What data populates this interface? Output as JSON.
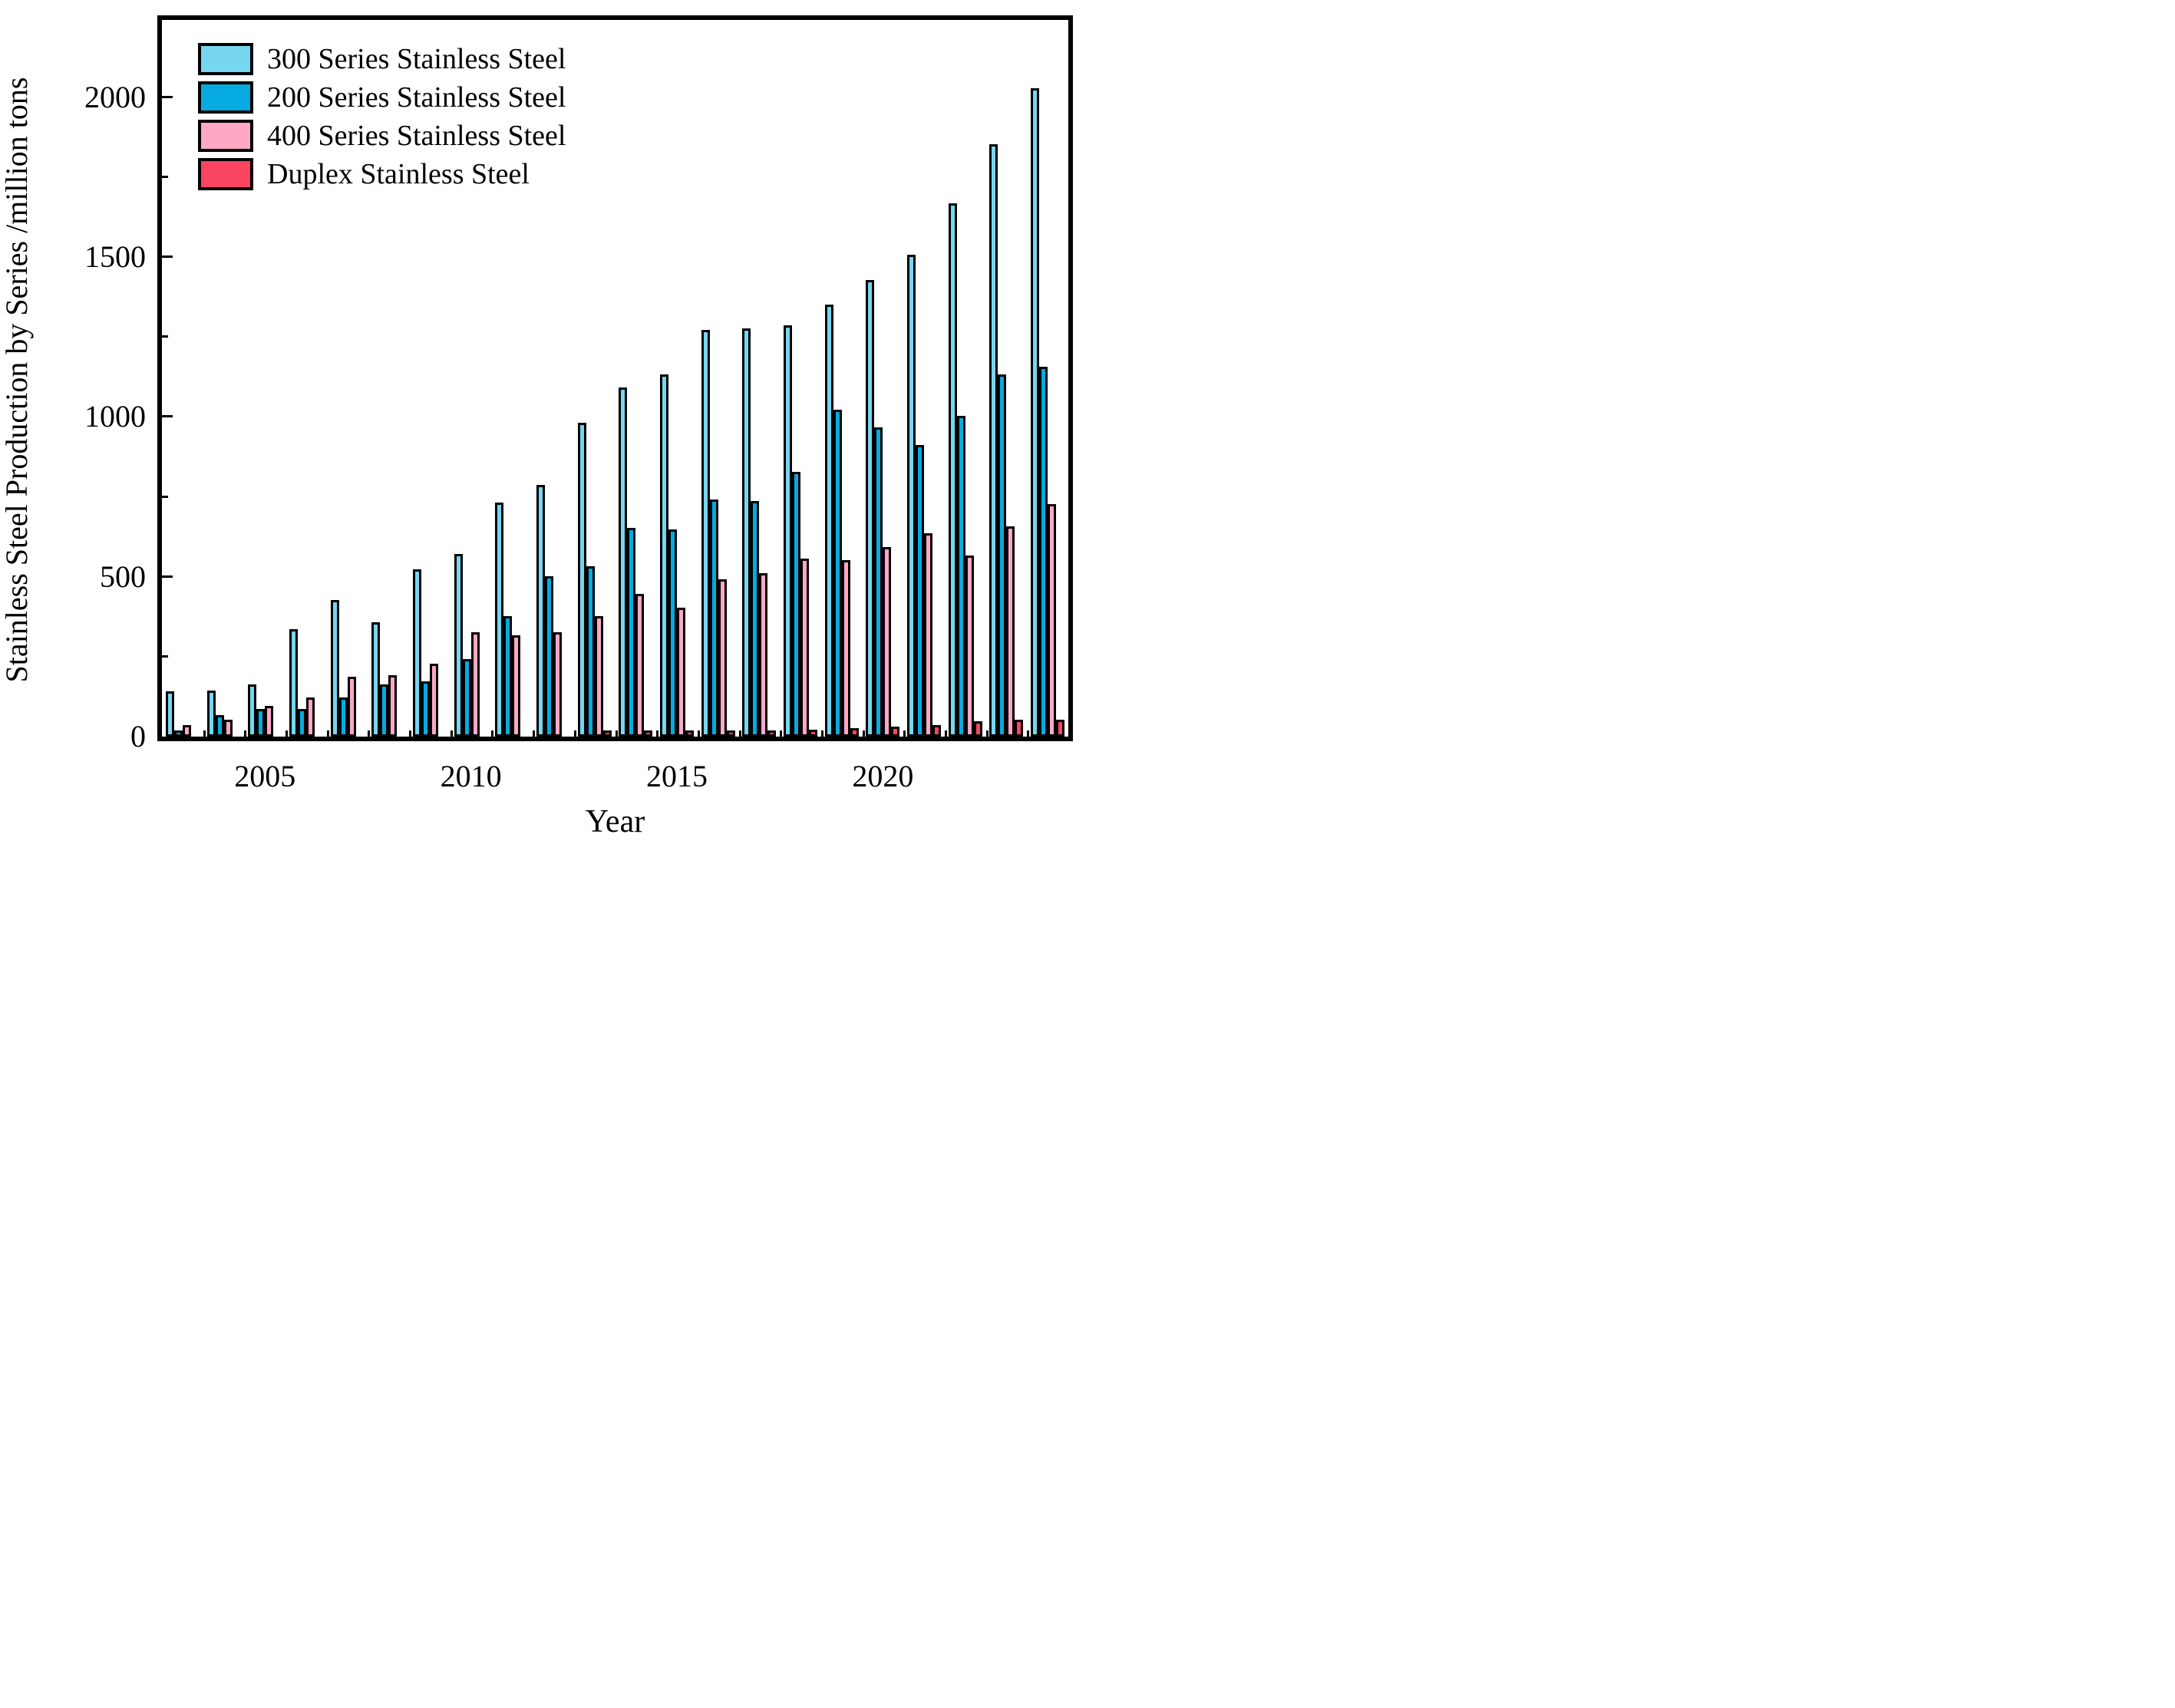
{
  "chart_data": {
    "type": "bar",
    "title": "",
    "xlabel": "Year",
    "ylabel": "Stainless Steel Production by Series /million tons",
    "ylim": [
      0,
      2242
    ],
    "y_major_ticks": [
      0,
      500,
      1000,
      1500,
      2000
    ],
    "y_minor_ticks": [
      250,
      750,
      1250,
      1750
    ],
    "grid": false,
    "legend_position": "top-left",
    "background_color": "#FFFFFF",
    "axis_color": "#000000",
    "bar_outline_color": "#000000",
    "categories": [
      2003,
      2004,
      2005,
      2006,
      2007,
      2008,
      2009,
      2010,
      2011,
      2012,
      2013,
      2014,
      2015,
      2016,
      2017,
      2018,
      2019,
      2020,
      2021,
      2022,
      2023,
      2024
    ],
    "x_tick_labels": [
      {
        "label": "2005",
        "category_index": 2
      },
      {
        "label": "2010",
        "category_index": 7
      },
      {
        "label": "2015",
        "category_index": 12
      },
      {
        "label": "2020",
        "category_index": 17
      }
    ],
    "series": [
      {
        "name": "300 Series Stainless Steel",
        "color": "#76D6F0",
        "values": [
          135,
          138,
          155,
          330,
          420,
          350,
          515,
          565,
          725,
          780,
          975,
          1085,
          1125,
          1265,
          1270,
          1280,
          1345,
          1420,
          1500,
          1660,
          1845,
          2020
        ]
      },
      {
        "name": "200 Series Stainless Steel",
        "color": "#05ABE0",
        "values": [
          10,
          60,
          80,
          80,
          115,
          155,
          165,
          235,
          370,
          495,
          525,
          645,
          640,
          735,
          730,
          820,
          1015,
          960,
          905,
          995,
          1125,
          1150
        ]
      },
      {
        "name": "400 Series Stainless Steel",
        "color": "#FFA8C5",
        "values": [
          30,
          45,
          90,
          115,
          180,
          185,
          220,
          320,
          310,
          320,
          370,
          440,
          395,
          485,
          505,
          550,
          545,
          585,
          630,
          560,
          650,
          720
        ]
      },
      {
        "name": "Duplex Stainless Steel",
        "color": "#F9455F",
        "values": [
          0,
          0,
          0,
          0,
          0,
          0,
          0,
          0,
          0,
          0,
          5,
          8,
          12,
          12,
          12,
          15,
          20,
          25,
          30,
          40,
          45,
          45
        ]
      }
    ]
  }
}
